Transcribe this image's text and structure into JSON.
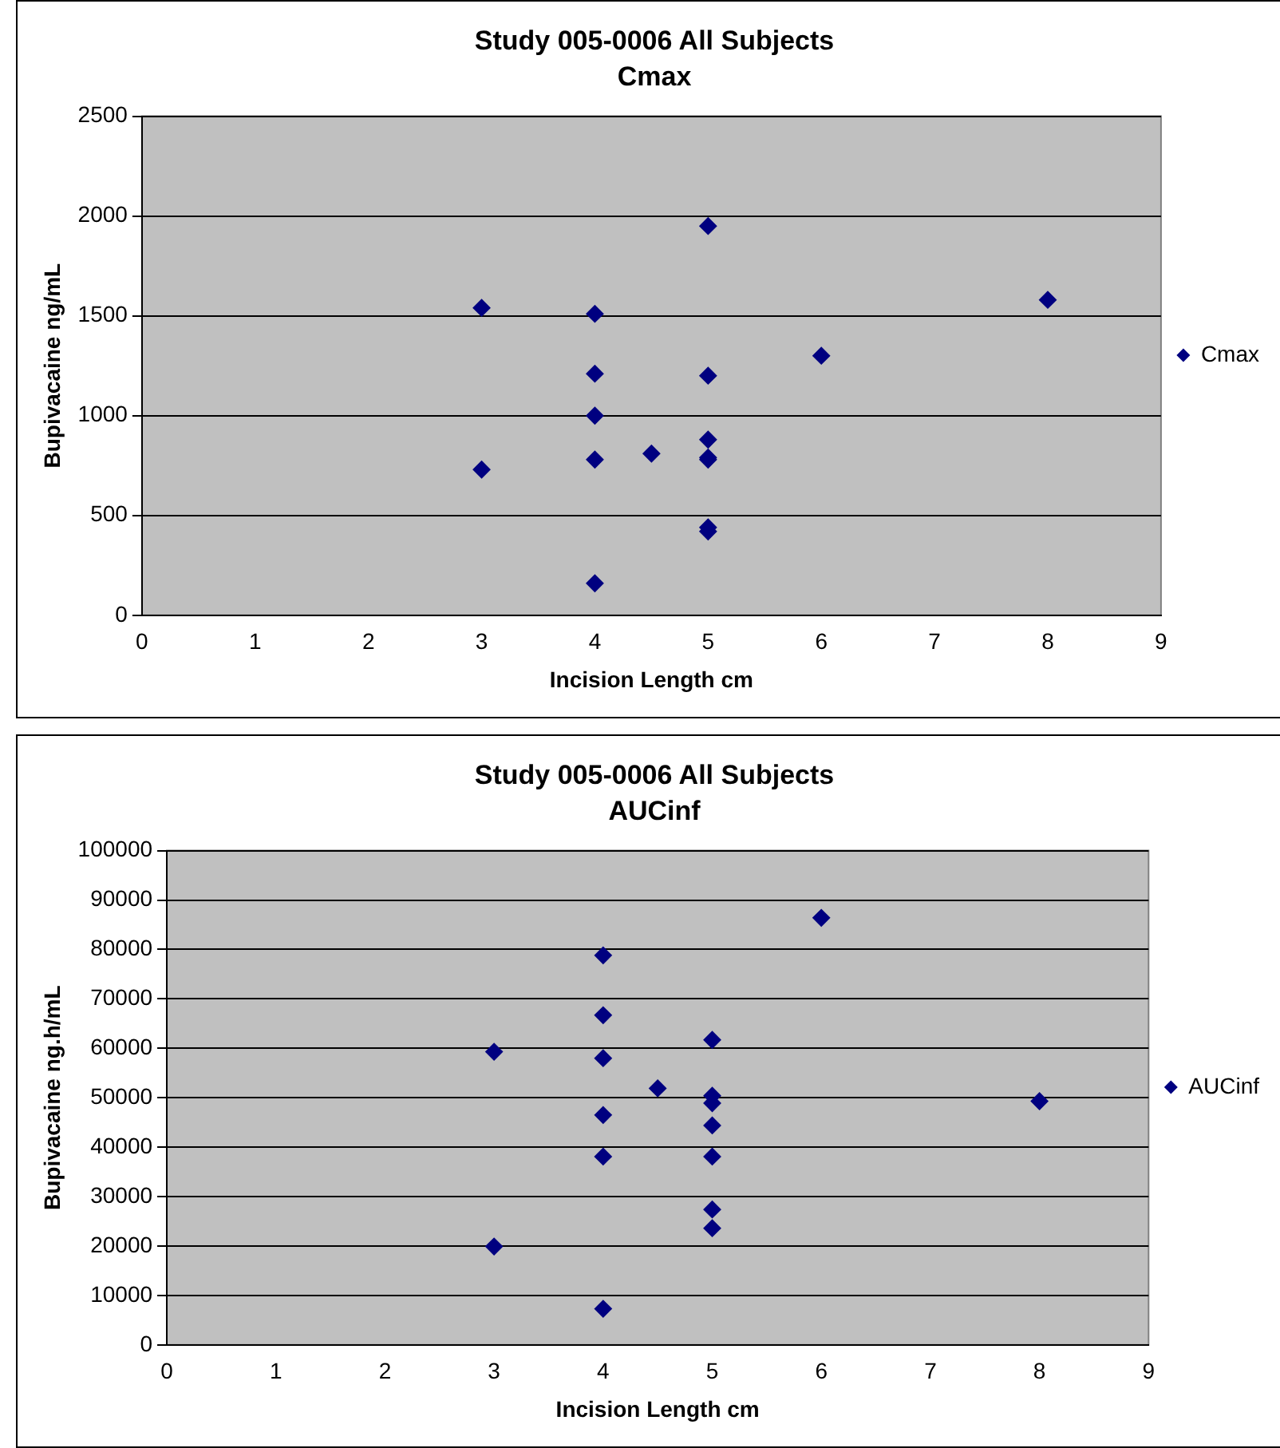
{
  "chart_data": [
    {
      "type": "scatter",
      "title": "Study 005-0006 All Subjects",
      "subtitle": "Cmax",
      "xlabel": "Incision Length cm",
      "ylabel": "Bupivacaine ng/mL",
      "series": [
        {
          "name": "Cmax",
          "color": "#000080",
          "x": [
            3,
            3,
            4,
            4,
            4,
            4,
            4,
            4.5,
            5,
            5,
            5,
            5,
            5,
            5,
            5,
            6,
            8
          ],
          "values": [
            1540,
            730,
            1510,
            1210,
            1000,
            780,
            160,
            810,
            1950,
            1200,
            880,
            790,
            780,
            440,
            420,
            1300,
            1580
          ]
        }
      ],
      "xlim": [
        0,
        9
      ],
      "xticks": [
        0,
        1,
        2,
        3,
        4,
        5,
        6,
        7,
        8,
        9
      ],
      "ylim": [
        0,
        2500
      ],
      "yticks": [
        0,
        500,
        1000,
        1500,
        2000,
        2500
      ],
      "grid": "y",
      "legend": "right",
      "marker": "diamond"
    },
    {
      "type": "scatter",
      "title": "Study 005-0006 All Subjects",
      "subtitle": "AUCinf",
      "xlabel": "Incision Length cm",
      "ylabel": "Bupivacaine ng.h/mL",
      "series": [
        {
          "name": "AUCinf",
          "color": "#000080",
          "x": [
            3,
            3,
            4,
            4,
            4,
            4,
            4,
            4,
            4.5,
            5,
            5,
            5,
            5,
            5,
            5,
            5,
            6,
            8
          ],
          "values": [
            59300,
            19900,
            78800,
            66700,
            58000,
            46500,
            38100,
            7300,
            51900,
            61700,
            50400,
            48900,
            44400,
            38100,
            27400,
            23600,
            86400,
            49300
          ]
        }
      ],
      "xlim": [
        0,
        9
      ],
      "xticks": [
        0,
        1,
        2,
        3,
        4,
        5,
        6,
        7,
        8,
        9
      ],
      "ylim": [
        0,
        100000
      ],
      "yticks": [
        0,
        10000,
        20000,
        30000,
        40000,
        50000,
        60000,
        70000,
        80000,
        90000,
        100000
      ],
      "grid": "y",
      "legend": "right",
      "marker": "diamond"
    }
  ]
}
